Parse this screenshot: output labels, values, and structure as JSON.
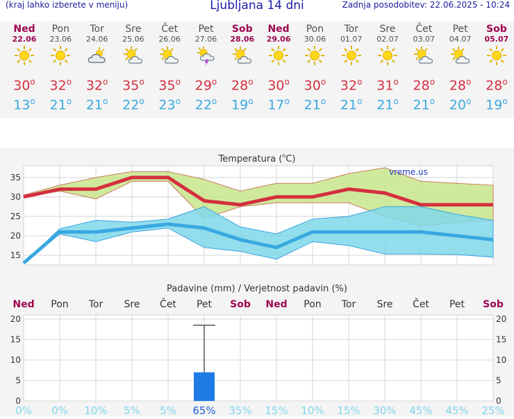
{
  "header": {
    "menu_hint": "(kraj lahko izberete v meniju)",
    "title": "Ljubljana 14 dni",
    "updated": "Zadnja posodobitev: 22.06.2025 - 10:24"
  },
  "days": [
    {
      "name": "Ned",
      "date": "22.06",
      "weekend": true,
      "icon": "sun-icon",
      "max": "30",
      "min": "13"
    },
    {
      "name": "Pon",
      "date": "23.06",
      "weekend": false,
      "icon": "sun-icon",
      "max": "32",
      "min": "21"
    },
    {
      "name": "Tor",
      "date": "24.06",
      "weekend": false,
      "icon": "cloudy-icon",
      "max": "32",
      "min": "21"
    },
    {
      "name": "Sre",
      "date": "25.06",
      "weekend": false,
      "icon": "partly-cloudy-icon",
      "max": "35",
      "min": "22"
    },
    {
      "name": "Čet",
      "date": "26.06",
      "weekend": false,
      "icon": "partly-cloudy-icon",
      "max": "35",
      "min": "23"
    },
    {
      "name": "Pet",
      "date": "27.06",
      "weekend": false,
      "icon": "thunderstorm-icon",
      "max": "29",
      "min": "22"
    },
    {
      "name": "Sob",
      "date": "28.06",
      "weekend": true,
      "icon": "partly-cloudy-icon",
      "max": "28",
      "min": "19"
    },
    {
      "name": "Ned",
      "date": "29.06",
      "weekend": true,
      "icon": "sun-icon",
      "max": "30",
      "min": "17"
    },
    {
      "name": "Pon",
      "date": "30.06",
      "weekend": false,
      "icon": "sun-icon",
      "max": "30",
      "min": "21"
    },
    {
      "name": "Tor",
      "date": "01.07",
      "weekend": false,
      "icon": "sun-icon",
      "max": "32",
      "min": "21"
    },
    {
      "name": "Sre",
      "date": "02.07",
      "weekend": false,
      "icon": "sun-icon",
      "max": "31",
      "min": "21"
    },
    {
      "name": "Čet",
      "date": "03.07",
      "weekend": false,
      "icon": "partly-cloudy-icon",
      "max": "28",
      "min": "21"
    },
    {
      "name": "Pet",
      "date": "04.07",
      "weekend": false,
      "icon": "partly-cloudy-icon",
      "max": "28",
      "min": "20"
    },
    {
      "name": "Sob",
      "date": "05.07",
      "weekend": true,
      "icon": "sun-icon",
      "max": "28",
      "min": "19"
    }
  ],
  "degree_symbol": "o",
  "chart_data": [
    {
      "type": "line",
      "title_prefix": "Temperatura (",
      "title_unit_sup": "o",
      "title_suffix": "C)",
      "watermark": "vreme.us",
      "x": [
        0,
        1,
        2,
        3,
        4,
        5,
        6,
        7,
        8,
        9,
        10,
        11,
        12,
        13
      ],
      "ylim": [
        12.5,
        38
      ],
      "yticks": [
        "35",
        "30",
        "25",
        "20",
        "15"
      ],
      "ytick_values": [
        35,
        30,
        25,
        20,
        15
      ],
      "series": [
        {
          "name": "max",
          "color": "#d42f3f",
          "values": [
            30,
            32,
            32,
            35,
            35,
            29,
            28,
            30,
            30,
            32,
            31,
            28,
            28,
            28
          ]
        },
        {
          "name": "min",
          "color": "#38a8e0",
          "values": [
            13,
            21,
            21,
            22,
            23,
            22,
            19,
            17,
            21,
            21,
            21,
            21,
            20,
            19
          ]
        }
      ],
      "bands": [
        {
          "name": "max-range",
          "fill": "#c8e68c",
          "upper": [
            30.5,
            33,
            35,
            36.5,
            36.5,
            34.5,
            31.5,
            33.5,
            33.5,
            36,
            37.5,
            34,
            33.5,
            33
          ],
          "lower": [
            30,
            31.5,
            29.5,
            34,
            34,
            24.5,
            27.5,
            28.5,
            28.5,
            28.5,
            25,
            22.5,
            23.5,
            24
          ]
        },
        {
          "name": "min-range",
          "fill": "#80d8ea",
          "upper": [
            13,
            21.8,
            24,
            23.5,
            24.3,
            27.5,
            22.3,
            20.5,
            24.3,
            25,
            27.5,
            27.5,
            25.5,
            24
          ],
          "lower": [
            13,
            20.5,
            18.5,
            21,
            22,
            17,
            16,
            14,
            18.5,
            17.5,
            15.3,
            15.3,
            15.2,
            14.5
          ]
        }
      ]
    },
    {
      "type": "bar",
      "title": "Padavine (mm) / Verjetnost padavin (%)",
      "categories": [
        "Ned",
        "Pon",
        "Tor",
        "Sre",
        "Čet",
        "Pet",
        "Sob",
        "Ned",
        "Pon",
        "Tor",
        "Sre",
        "Čet",
        "Pet",
        "Sob"
      ],
      "weekend": [
        true,
        false,
        false,
        false,
        false,
        false,
        true,
        true,
        false,
        false,
        false,
        false,
        false,
        true
      ],
      "values": [
        0,
        0,
        0,
        0,
        0,
        7,
        0,
        0,
        0,
        0,
        0,
        0,
        0,
        0
      ],
      "error_max": [
        0,
        0,
        0,
        0,
        0,
        18.5,
        0,
        0,
        0,
        0,
        0,
        0,
        0,
        0
      ],
      "probability": [
        "0%",
        "0%",
        "10%",
        "5%",
        "5%",
        "65%",
        "35%",
        "15%",
        "10%",
        "15%",
        "30%",
        "45%",
        "45%",
        "25%"
      ],
      "probability_values": [
        0,
        0,
        10,
        5,
        5,
        65,
        35,
        15,
        10,
        15,
        30,
        45,
        45,
        25
      ],
      "ylim": [
        0,
        21
      ],
      "yticks": [
        "20",
        "15",
        "10",
        "5",
        "0"
      ],
      "ytick_values": [
        20,
        15,
        10,
        5,
        0
      ]
    }
  ]
}
